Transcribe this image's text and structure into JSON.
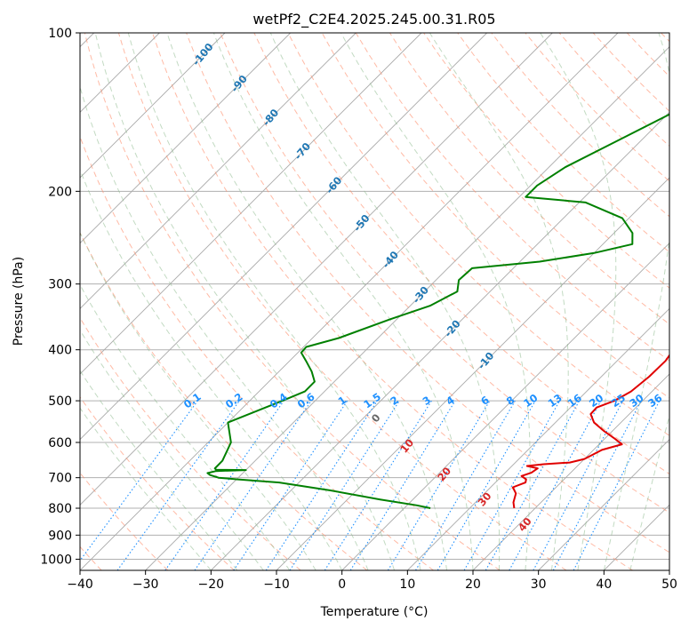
{
  "chart_data": {
    "type": "line",
    "title": "wetPf2_C2E4.2025.245.00.31.R05",
    "xlabel": "Temperature (°C)",
    "ylabel": "Pressure (hPa)",
    "xlim": [
      -40,
      50
    ],
    "ylim": [
      1050,
      100
    ],
    "y_scale": "log",
    "skew": true,
    "grid": true,
    "x_ticks": [
      -40,
      -30,
      -20,
      -10,
      0,
      10,
      20,
      30,
      40,
      50
    ],
    "y_ticks": [
      100,
      200,
      300,
      400,
      500,
      600,
      700,
      800,
      900,
      1000
    ],
    "colors": {
      "temperature": "#e00000",
      "dewpoint": "#008000",
      "dry_adiabat": "#ff8c69",
      "moist_adiabat": "#8fbc8f",
      "mixing_ratio": "#1e90ff",
      "isotherm": "#a9a9a9",
      "lcl_curve": "#d2b48c"
    },
    "series": [
      {
        "key": "temperature",
        "points": [
          [
            800,
            16.8
          ],
          [
            780,
            15.8
          ],
          [
            750,
            14.8
          ],
          [
            730,
            13.4
          ],
          [
            715,
            14.6
          ],
          [
            705,
            14.2
          ],
          [
            695,
            13.0
          ],
          [
            685,
            14.0
          ],
          [
            672,
            14.3
          ],
          [
            665,
            12.3
          ],
          [
            660,
            14.6
          ],
          [
            655,
            18.3
          ],
          [
            645,
            20.0
          ],
          [
            635,
            20.5
          ],
          [
            620,
            21.3
          ],
          [
            605,
            23.5
          ],
          [
            590,
            21.5
          ],
          [
            570,
            18.6
          ],
          [
            550,
            15.9
          ],
          [
            530,
            14.1
          ],
          [
            515,
            14.0
          ],
          [
            500,
            15.7
          ],
          [
            480,
            16.8
          ],
          [
            450,
            17.3
          ],
          [
            420,
            17.4
          ],
          [
            400,
            16.9
          ],
          [
            380,
            15.5
          ],
          [
            360,
            13.5
          ],
          [
            340,
            12.7
          ],
          [
            320,
            12.1
          ],
          [
            300,
            11.1
          ],
          [
            285,
            8.5
          ],
          [
            265,
            6.9
          ],
          [
            245,
            6.2
          ],
          [
            225,
            5.1
          ],
          [
            210,
            3.7
          ],
          [
            200,
            3.6
          ],
          [
            185,
            5.1
          ],
          [
            170,
            7.0
          ],
          [
            155,
            10.4
          ],
          [
            140,
            14.4
          ],
          [
            130,
            17.5
          ],
          [
            120,
            21.6
          ],
          [
            112,
            25.6
          ],
          [
            105,
            29.0
          ],
          [
            100,
            31.0
          ]
        ]
      },
      {
        "key": "dewpoint",
        "points": [
          [
            800,
            4.0
          ],
          [
            790,
            1.5
          ],
          [
            770,
            -5.0
          ],
          [
            740,
            -14.0
          ],
          [
            715,
            -23.0
          ],
          [
            705,
            -30.0
          ],
          [
            700,
            -33.0
          ],
          [
            692,
            -34.7
          ],
          [
            686,
            -35.4
          ],
          [
            680,
            -34.4
          ],
          [
            677,
            -30.0
          ],
          [
            676,
            -34.6
          ],
          [
            672,
            -35.0
          ],
          [
            665,
            -35.0
          ],
          [
            650,
            -35.0
          ],
          [
            600,
            -36.5
          ],
          [
            550,
            -40.0
          ],
          [
            500,
            -35.0
          ],
          [
            480,
            -33.0
          ],
          [
            460,
            -33.0
          ],
          [
            440,
            -35.0
          ],
          [
            420,
            -37.5
          ],
          [
            405,
            -39.5
          ],
          [
            395,
            -39.6
          ],
          [
            380,
            -36.0
          ],
          [
            350,
            -31.0
          ],
          [
            330,
            -27.0
          ],
          [
            310,
            -25.0
          ],
          [
            295,
            -26.5
          ],
          [
            280,
            -26.3
          ],
          [
            272,
            -17.0
          ],
          [
            262,
            -10.0
          ],
          [
            252,
            -5.5
          ],
          [
            240,
            -7.2
          ],
          [
            225,
            -11.0
          ],
          [
            210,
            -19.0
          ],
          [
            205,
            -29.0
          ],
          [
            195,
            -29.0
          ],
          [
            180,
            -27.5
          ],
          [
            160,
            -23.5
          ],
          [
            140,
            -19.0
          ],
          [
            130,
            -17.5
          ],
          [
            125,
            -17.5
          ],
          [
            122,
            -12.0
          ],
          [
            118,
            -6.0
          ],
          [
            110,
            -3.5
          ],
          [
            105,
            -2.3
          ],
          [
            100,
            -1.5
          ]
        ]
      }
    ],
    "dry_adiabat_labels": [
      "-100",
      "-90",
      "-80",
      "-70",
      "-60",
      "-50",
      "-40",
      "-30",
      "-20",
      "-10"
    ],
    "moist_adiabat_labels": [
      "0",
      "10",
      "20",
      "30",
      "40"
    ],
    "mixing_ratio_labels": [
      "0.1",
      "0.2",
      "0.4",
      "0.6",
      "1",
      "1.5",
      "2",
      "3",
      "4",
      "6",
      "8",
      "10",
      "13",
      "16",
      "20",
      "25",
      "30",
      "36"
    ]
  }
}
